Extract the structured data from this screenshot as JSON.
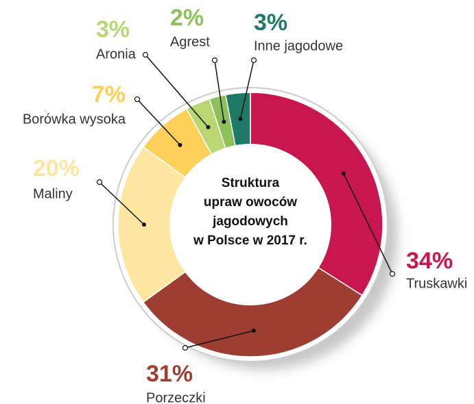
{
  "chart_data": {
    "type": "pie",
    "title": [
      "Struktura",
      "upraw owoców",
      "jagodowych",
      "w Polsce w 2017 r."
    ],
    "categories": [
      "Truskawki",
      "Porzeczki",
      "Maliny",
      "Borówka wysoka",
      "Aronia",
      "Agrest",
      "Inne jagodowe"
    ],
    "values": [
      34,
      31,
      20,
      7,
      3,
      2,
      3
    ],
    "value_labels": [
      "34%",
      "31%",
      "20%",
      "7%",
      "3%",
      "2%",
      "3%"
    ],
    "colors": [
      "#c8174f",
      "#9e3d32",
      "#fde6a0",
      "#fdd05a",
      "#b8d672",
      "#8cc05a",
      "#1e7a66"
    ]
  }
}
